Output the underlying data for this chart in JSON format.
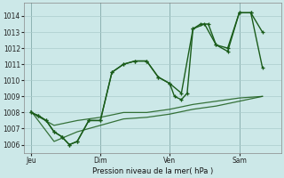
{
  "title": "Pression niveau de la mer( hPa )",
  "bg_color": "#cce8e8",
  "grid_color": "#aacccc",
  "line_color": "#1a5c1a",
  "ylim": [
    1005.5,
    1014.8
  ],
  "yticks": [
    1006,
    1007,
    1008,
    1009,
    1010,
    1011,
    1012,
    1013,
    1014
  ],
  "xtick_labels": [
    "Jeu",
    "Dim",
    "Ven",
    "Sam"
  ],
  "vline_x": [
    0.0,
    3.0,
    6.0,
    9.0
  ],
  "xlim": [
    -0.3,
    10.8
  ],
  "line1_x": [
    0.0,
    0.33,
    0.66,
    1.0,
    1.33,
    1.66,
    2.0,
    2.5,
    3.0,
    3.5,
    4.0,
    4.5,
    5.0,
    5.5,
    6.0,
    6.2,
    6.5,
    6.75,
    7.0,
    7.33,
    7.66,
    8.0,
    8.5,
    9.0,
    9.5,
    10.0
  ],
  "line1_y": [
    1008.0,
    1007.8,
    1007.5,
    1006.8,
    1006.5,
    1006.0,
    1006.2,
    1007.5,
    1007.5,
    1010.5,
    1011.0,
    1011.2,
    1011.2,
    1010.2,
    1009.8,
    1009.0,
    1008.8,
    1009.2,
    1013.2,
    1013.5,
    1013.5,
    1012.2,
    1012.0,
    1014.2,
    1014.2,
    1013.0
  ],
  "line2_x": [
    0.0,
    0.33,
    0.66,
    1.0,
    1.33,
    1.66,
    2.0,
    2.5,
    3.0,
    3.5,
    4.0,
    4.5,
    5.0,
    5.5,
    6.0,
    6.5,
    7.0,
    7.5,
    8.0,
    8.5,
    9.0,
    9.5,
    10.0
  ],
  "line2_y": [
    1008.0,
    1007.8,
    1007.5,
    1006.8,
    1006.5,
    1006.0,
    1006.2,
    1007.5,
    1007.5,
    1010.5,
    1011.0,
    1011.2,
    1011.2,
    1010.2,
    1009.8,
    1009.2,
    1013.2,
    1013.5,
    1012.2,
    1011.8,
    1014.2,
    1014.2,
    1010.8
  ],
  "diag1_x": [
    0.0,
    1.0,
    2.0,
    3.0,
    4.0,
    5.0,
    6.0,
    7.0,
    8.0,
    9.0,
    10.0
  ],
  "diag1_y": [
    1008.0,
    1007.2,
    1007.5,
    1007.7,
    1008.0,
    1008.0,
    1008.2,
    1008.5,
    1008.7,
    1008.9,
    1009.0
  ],
  "diag2_x": [
    0.0,
    1.0,
    2.0,
    3.0,
    4.0,
    5.0,
    6.0,
    7.0,
    8.0,
    9.0,
    10.0
  ],
  "diag2_y": [
    1008.1,
    1006.2,
    1006.8,
    1007.2,
    1007.6,
    1007.7,
    1007.9,
    1008.2,
    1008.4,
    1008.7,
    1009.0
  ],
  "marker_size": 3.0,
  "linewidth": 1.0,
  "diag_linewidth": 0.9
}
